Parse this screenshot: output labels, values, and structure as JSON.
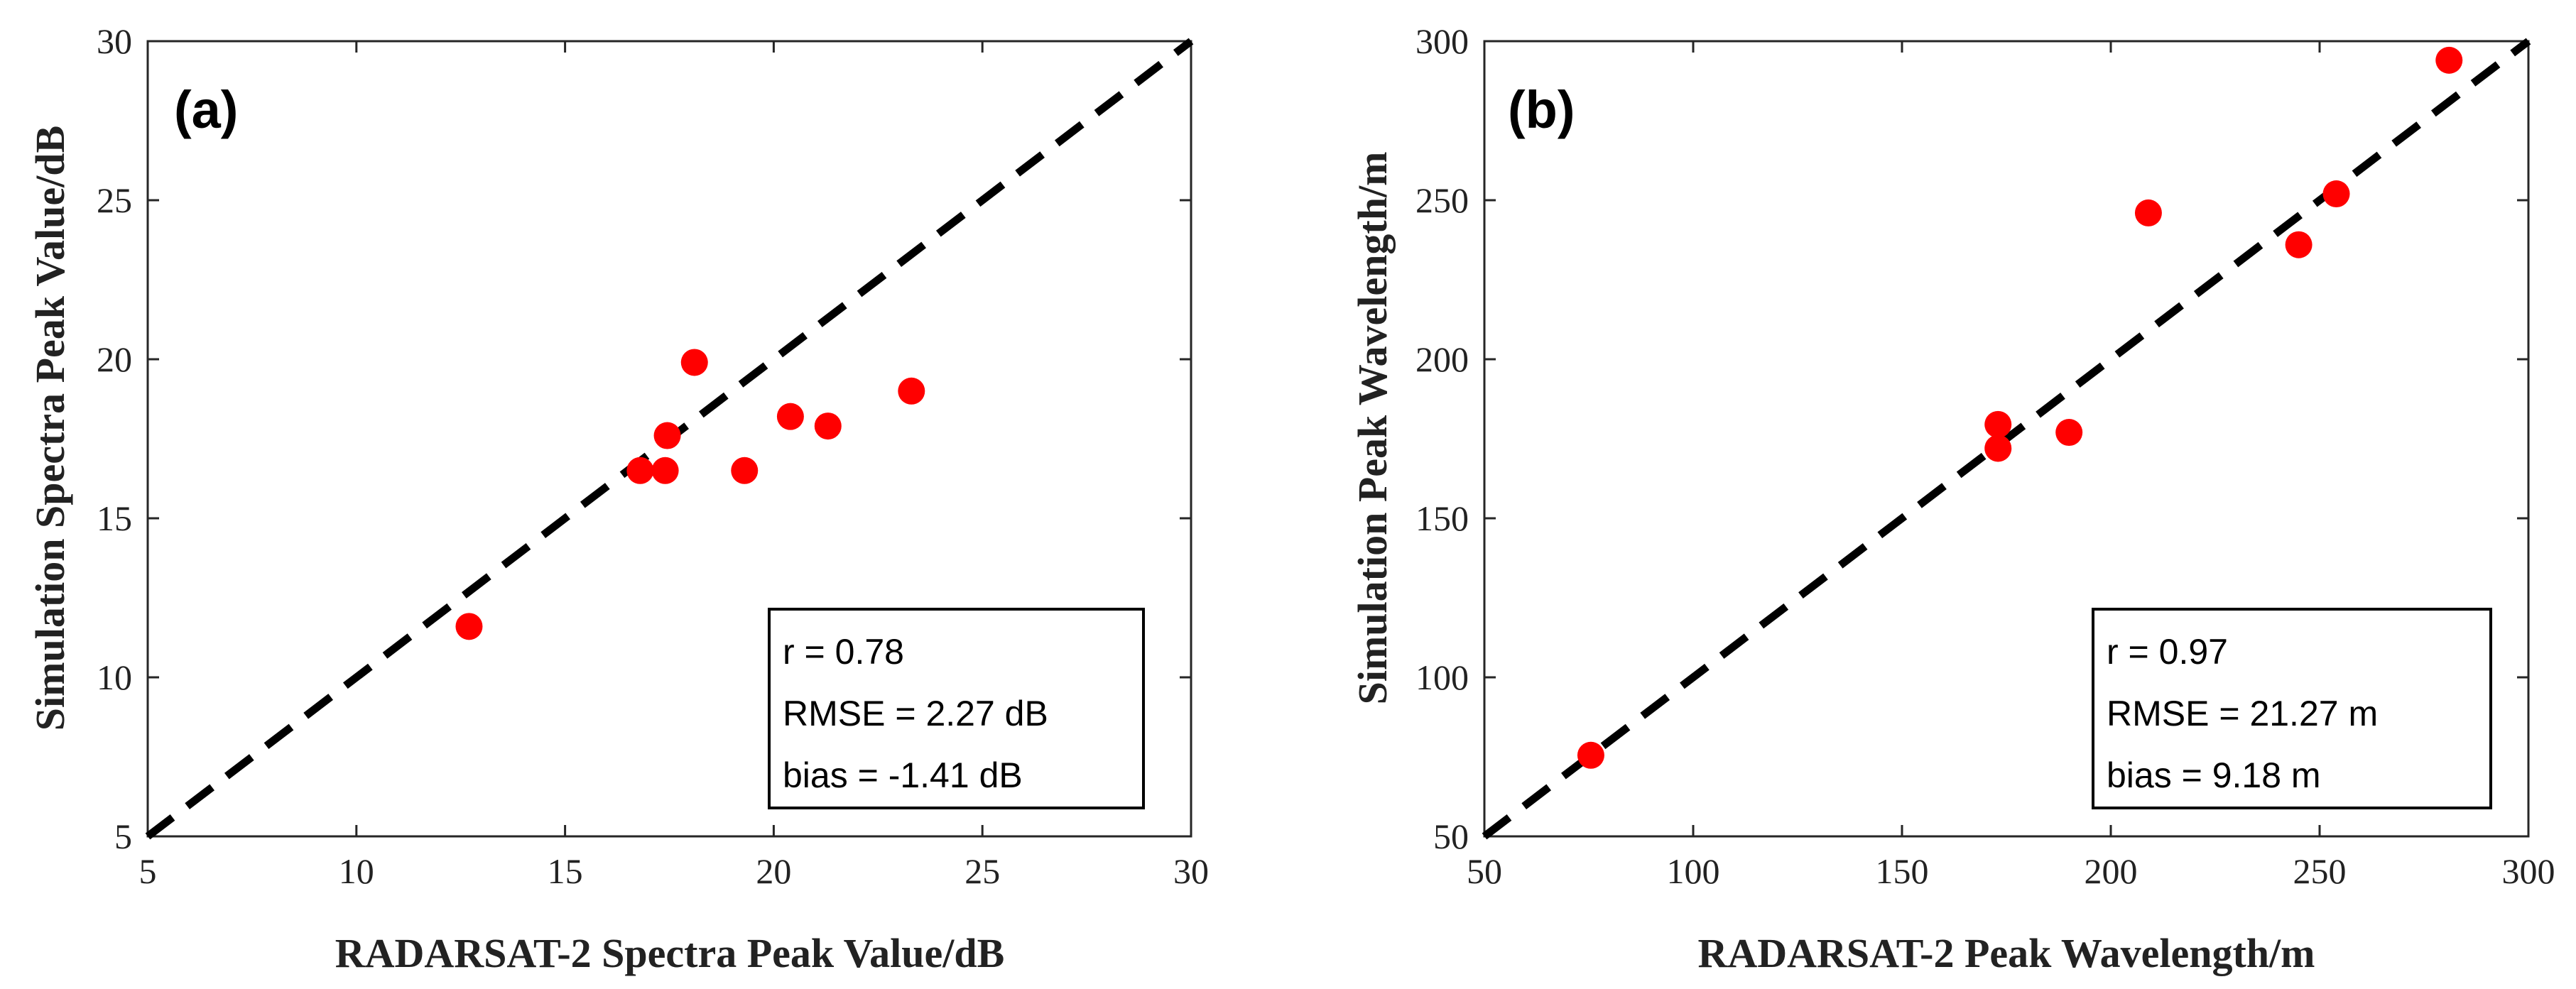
{
  "chart_data": [
    {
      "type": "scatter",
      "panel_label": "(a)",
      "xlabel": "RADARSAT-2 Spectra Peak Value/dB",
      "ylabel": "Simulation Spectra Peak Value/dB",
      "xlim": [
        5,
        30
      ],
      "ylim": [
        5,
        30
      ],
      "xticks": [
        5,
        10,
        15,
        20,
        25,
        30
      ],
      "yticks": [
        5,
        10,
        15,
        20,
        25,
        30
      ],
      "grid": false,
      "series": [
        {
          "name": "points",
          "color": "#ff0000",
          "x": [
            12.7,
            16.8,
            17.4,
            17.45,
            18.1,
            19.3,
            20.4,
            21.3,
            23.3
          ],
          "y": [
            11.6,
            16.5,
            16.5,
            17.6,
            19.9,
            16.5,
            18.2,
            17.9,
            19.0
          ]
        }
      ],
      "reference_line": {
        "label": "1:1 line",
        "x": [
          5,
          30
        ],
        "y": [
          5,
          30
        ],
        "style": "dashed",
        "color": "#000000"
      },
      "stats": {
        "r": "r = 0.78",
        "rmse": "RMSE = 2.27 dB",
        "bias": "bias = -1.41 dB"
      },
      "stats_position": "bottom-right"
    },
    {
      "type": "scatter",
      "panel_label": "(b)",
      "xlabel": "RADARSAT-2 Peak Wavelength/m",
      "ylabel": "Simulation Peak Wavelength/m",
      "xlim": [
        50,
        300
      ],
      "ylim": [
        50,
        300
      ],
      "xticks": [
        50,
        100,
        150,
        200,
        250,
        300
      ],
      "yticks": [
        50,
        100,
        150,
        200,
        250,
        300
      ],
      "grid": false,
      "series": [
        {
          "name": "points",
          "color": "#ff0000",
          "x": [
            75.5,
            173,
            173,
            190,
            209,
            245,
            254,
            281
          ],
          "y": [
            75.5,
            172,
            179.5,
            177,
            246,
            236,
            252,
            294
          ]
        }
      ],
      "reference_line": {
        "label": "1:1 line",
        "x": [
          50,
          300
        ],
        "y": [
          50,
          300
        ],
        "style": "dashed",
        "color": "#000000"
      },
      "stats": {
        "r": "r = 0.97",
        "rmse": "RMSE = 21.27 m",
        "bias": "bias = 9.18 m"
      },
      "stats_position": "bottom-right"
    }
  ]
}
